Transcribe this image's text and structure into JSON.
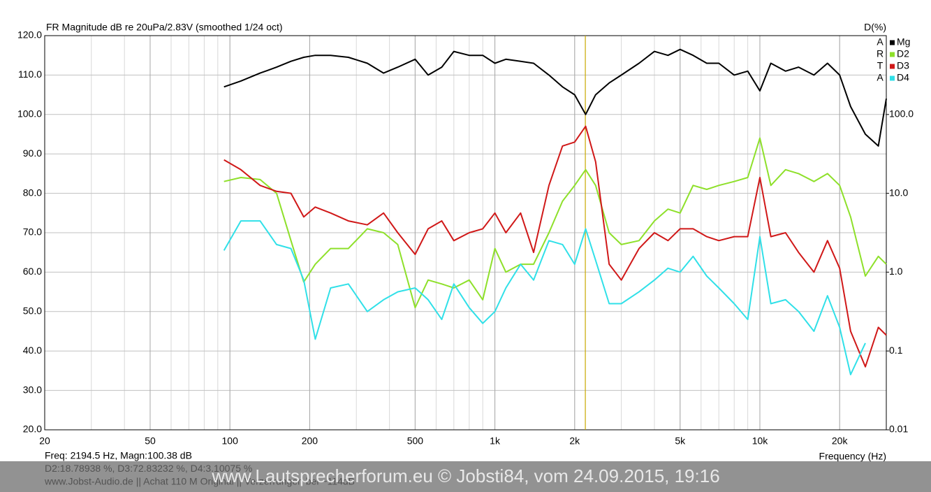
{
  "chart_data": {
    "type": "line",
    "title": "FR Magnitude dB re 20uPa/2.83V (smoothed 1/24 oct)",
    "y2_title": "D(%)",
    "brand": [
      "A",
      "R",
      "T",
      "A"
    ],
    "xlabel": "Frequency (Hz)",
    "log_x": true,
    "log_y2": true,
    "grid": true,
    "legend": "top-right",
    "xlim": [
      20,
      30000
    ],
    "xticks": [
      20,
      50,
      100,
      200,
      500,
      {
        "value": 1000,
        "label": "1k"
      },
      {
        "value": 2000,
        "label": "2k"
      },
      {
        "value": 5000,
        "label": "5k"
      },
      {
        "value": 10000,
        "label": "10k"
      },
      {
        "value": 20000,
        "label": "20k"
      }
    ],
    "ylim": [
      20,
      120
    ],
    "yticks": [
      {
        "value": 20,
        "label": "20.0"
      },
      {
        "value": 30,
        "label": "30.0"
      },
      {
        "value": 40,
        "label": "40.0"
      },
      {
        "value": 50,
        "label": "50.0"
      },
      {
        "value": 60,
        "label": "60.0"
      },
      {
        "value": 70,
        "label": "70.0"
      },
      {
        "value": 80,
        "label": "80.0"
      },
      {
        "value": 90,
        "label": "90.0"
      },
      {
        "value": 100,
        "label": "100.0"
      },
      {
        "value": 110,
        "label": "110.0"
      },
      {
        "value": 120,
        "label": "120.0"
      }
    ],
    "y2lim": [
      0.01,
      1000
    ],
    "y2ticks": [
      0.01,
      0.1,
      {
        "value": 1,
        "label": "1.0"
      },
      {
        "value": 10,
        "label": "10.0"
      },
      {
        "value": 100,
        "label": "100.0"
      }
    ],
    "cursor": {
      "x": 2194.5,
      "color": "#c8a800"
    },
    "x": [
      95,
      110,
      130,
      150,
      170,
      190,
      210,
      240,
      280,
      330,
      380,
      430,
      500,
      560,
      630,
      700,
      800,
      900,
      1000,
      1100,
      1250,
      1400,
      1600,
      1800,
      2000,
      2200,
      2400,
      2700,
      3000,
      3500,
      4000,
      4500,
      5000,
      5600,
      6300,
      7000,
      8000,
      9000,
      10000,
      11000,
      12500,
      14000,
      16000,
      18000,
      20000,
      22000,
      25000,
      28000,
      30000
    ],
    "series": [
      {
        "name": "Mg",
        "color": "#000000",
        "values": [
          107,
          108.5,
          110.5,
          112,
          113.5,
          114.5,
          115,
          115,
          114.5,
          113,
          110.5,
          112,
          114,
          110,
          112,
          116,
          115,
          115,
          113,
          114,
          113.5,
          113,
          110,
          107,
          105,
          100,
          105,
          108,
          110,
          113,
          116,
          115,
          116.5,
          115,
          113,
          113,
          110,
          111,
          106,
          113,
          111,
          112,
          110,
          113,
          110,
          102,
          95,
          92,
          104
        ]
      },
      {
        "name": "D2",
        "color": "#8ee02a",
        "values": [
          83,
          84,
          83.5,
          80,
          68,
          57.5,
          62,
          66,
          66,
          71,
          70,
          67,
          51,
          58,
          57,
          56,
          58,
          53,
          66,
          60,
          62,
          62,
          70,
          78,
          82,
          86,
          82,
          70,
          67,
          68,
          73,
          76,
          75,
          82,
          81,
          82,
          83,
          84,
          94,
          82,
          86,
          85,
          83,
          85,
          82,
          74,
          59,
          64,
          62
        ]
      },
      {
        "name": "D3",
        "color": "#d01818",
        "values": [
          88.5,
          86,
          82,
          80.5,
          80,
          74,
          76.5,
          75,
          73,
          72,
          75,
          70,
          64.5,
          71,
          73,
          68,
          70,
          71,
          75,
          70,
          75,
          65,
          82,
          92,
          93,
          97,
          88,
          62,
          58,
          66,
          70,
          68,
          71,
          71,
          69,
          68,
          69,
          69,
          84,
          69,
          70,
          65,
          60,
          68,
          61,
          45,
          36,
          46,
          44
        ]
      },
      {
        "name": "D4",
        "color": "#30e0e8",
        "values": [
          65.5,
          73,
          73,
          67,
          66,
          58,
          43,
          56,
          57,
          50,
          53,
          55,
          56,
          53,
          48,
          57,
          51,
          47,
          50,
          56,
          62,
          58,
          68,
          67,
          62,
          71,
          63,
          52,
          52,
          55,
          58,
          61,
          60,
          64,
          59,
          56,
          52,
          48,
          69,
          52,
          53,
          50,
          45,
          54,
          46,
          34,
          42,
          null,
          null
        ]
      }
    ],
    "annotations": [
      "Freq: 2194.5 Hz, Magn:100.38 dB",
      "D2:18.78938 %, D3:72.83232 %, D4:3.10075 %",
      "www.Jobst-Audio.de  ||  Achat 110 M Original  ||  Verzerrungen bei ~114dB"
    ],
    "watermark": "www.Lautsprecherforum.eu © Jobsti84, vom 24.09.2015, 19:16"
  }
}
